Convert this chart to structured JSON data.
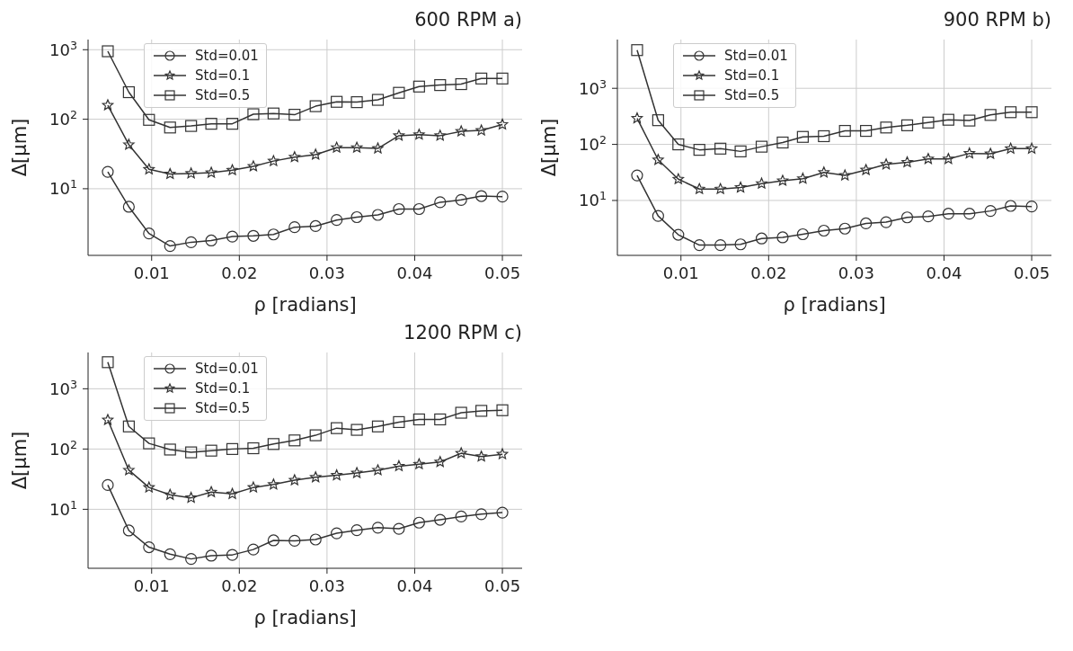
{
  "chart_data": [
    {
      "type": "line",
      "title": "600 RPM a)",
      "xlabel": "ρ [radians]",
      "ylabel": "Δ[μm]",
      "log": "y",
      "grid": true,
      "legend": "top left",
      "line_style": "solid",
      "x": [
        0.005,
        0.0074,
        0.0097,
        0.0121,
        0.0145,
        0.0168,
        0.0192,
        0.0216,
        0.0239,
        0.0263,
        0.0287,
        0.0311,
        0.0334,
        0.0358,
        0.0382,
        0.0405,
        0.0429,
        0.0453,
        0.0476,
        0.05
      ],
      "xlim": [
        0.00275,
        0.05225
      ],
      "xticks": [
        0.01,
        0.02,
        0.03,
        0.04,
        0.05
      ],
      "ylim": [
        1.1,
        1400
      ],
      "yticks": [
        {
          "value": 10,
          "label": "10$^{1}$"
        },
        {
          "value": 100,
          "label": "10$^{2}$"
        },
        {
          "value": 1000,
          "label": "10$^{3}$"
        }
      ],
      "series": [
        {
          "name": "Std=0.01",
          "color": "#333333",
          "marker": "circle",
          "values": [
            17.5,
            5.5,
            2.27,
            1.5,
            1.7,
            1.8,
            2.05,
            2.1,
            2.2,
            2.8,
            2.9,
            3.55,
            3.9,
            4.2,
            5.1,
            5.1,
            6.4,
            6.9,
            7.85,
            7.7
          ]
        },
        {
          "name": "Std=0.1",
          "color": "#333333",
          "marker": "star",
          "values": [
            159,
            43,
            19,
            16.3,
            16.6,
            17,
            18.5,
            21,
            25,
            28.5,
            31,
            39,
            39,
            38,
            58,
            60,
            58,
            67,
            69,
            84
          ]
        },
        {
          "name": "Std=0.5",
          "color": "#333333",
          "marker": "square",
          "values": [
            950,
            245,
            98,
            76,
            80,
            86,
            86,
            118,
            121,
            116,
            154,
            178,
            176,
            190,
            240,
            295,
            310,
            320,
            385,
            385
          ]
        }
      ]
    },
    {
      "type": "line",
      "title": "900 RPM b)",
      "xlabel": "ρ [radians]",
      "ylabel": "Δ[μm]",
      "log": "y",
      "grid": true,
      "legend": "top left",
      "line_style": "solid",
      "x": [
        0.005,
        0.0074,
        0.0097,
        0.0121,
        0.0145,
        0.0168,
        0.0192,
        0.0216,
        0.0239,
        0.0263,
        0.0287,
        0.0311,
        0.0334,
        0.0358,
        0.0382,
        0.0405,
        0.0429,
        0.0453,
        0.0476,
        0.05
      ],
      "xlim": [
        0.00275,
        0.05225
      ],
      "xticks": [
        0.01,
        0.02,
        0.03,
        0.04,
        0.05
      ],
      "ylim": [
        1.05,
        7400
      ],
      "yticks": [
        {
          "value": 10,
          "label": "10$^{1}$"
        },
        {
          "value": 100,
          "label": "10$^{2}$"
        },
        {
          "value": 1000,
          "label": "10$^{3}$"
        }
      ],
      "series": [
        {
          "name": "Std=0.01",
          "color": "#333333",
          "marker": "circle",
          "values": [
            28,
            5.3,
            2.45,
            1.6,
            1.6,
            1.65,
            2.1,
            2.2,
            2.5,
            2.9,
            3.15,
            3.9,
            4.1,
            5,
            5.2,
            5.8,
            5.8,
            6.5,
            8,
            7.8
          ]
        },
        {
          "name": "Std=0.1",
          "color": "#333333",
          "marker": "star",
          "values": [
            292,
            53,
            24,
            16,
            16,
            17,
            20,
            22.5,
            24.5,
            31.6,
            28,
            35,
            44,
            48,
            55,
            55,
            69,
            68,
            84,
            84
          ]
        },
        {
          "name": "Std=0.5",
          "color": "#333333",
          "marker": "square",
          "values": [
            4800,
            270,
            100,
            80,
            84,
            75,
            91,
            108,
            136,
            140,
            174,
            174,
            200,
            219,
            245,
            275,
            266,
            335,
            375,
            375
          ]
        }
      ]
    },
    {
      "type": "line",
      "title": "1200 RPM c)",
      "xlabel": "ρ [radians]",
      "ylabel": "Δ[μm]",
      "log": "y",
      "grid": true,
      "legend": "top left",
      "line_style": "solid",
      "x": [
        0.005,
        0.0074,
        0.0097,
        0.0121,
        0.0145,
        0.0168,
        0.0192,
        0.0216,
        0.0239,
        0.0263,
        0.0287,
        0.0311,
        0.0334,
        0.0358,
        0.0382,
        0.0405,
        0.0429,
        0.0453,
        0.0476,
        0.05
      ],
      "xlim": [
        0.00275,
        0.05225
      ],
      "xticks": [
        0.01,
        0.02,
        0.03,
        0.04,
        0.05
      ],
      "ylim": [
        1.05,
        4000
      ],
      "yticks": [
        {
          "value": 10,
          "label": "10$^{1}$"
        },
        {
          "value": 100,
          "label": "10$^{2}$"
        },
        {
          "value": 1000,
          "label": "10$^{3}$"
        }
      ],
      "series": [
        {
          "name": "Std=0.01",
          "color": "#333333",
          "marker": "circle",
          "values": [
            25.3,
            4.45,
            2.35,
            1.8,
            1.5,
            1.7,
            1.75,
            2.15,
            3.05,
            3,
            3.15,
            4,
            4.5,
            4.95,
            4.75,
            6,
            6.7,
            7.6,
            8.3,
            8.8
          ]
        },
        {
          "name": "Std=0.1",
          "color": "#333333",
          "marker": "star",
          "values": [
            304,
            44.5,
            23,
            17.4,
            15.5,
            19.3,
            18,
            23,
            25.8,
            30.4,
            34,
            36.7,
            40,
            44.5,
            52,
            56,
            61,
            85,
            75,
            82
          ]
        },
        {
          "name": "Std=0.5",
          "color": "#333333",
          "marker": "square",
          "values": [
            2760,
            237,
            124,
            98,
            88,
            94,
            100,
            103,
            121,
            139,
            169,
            222,
            208,
            237,
            280,
            310,
            310,
            400,
            430,
            440
          ]
        }
      ]
    }
  ]
}
